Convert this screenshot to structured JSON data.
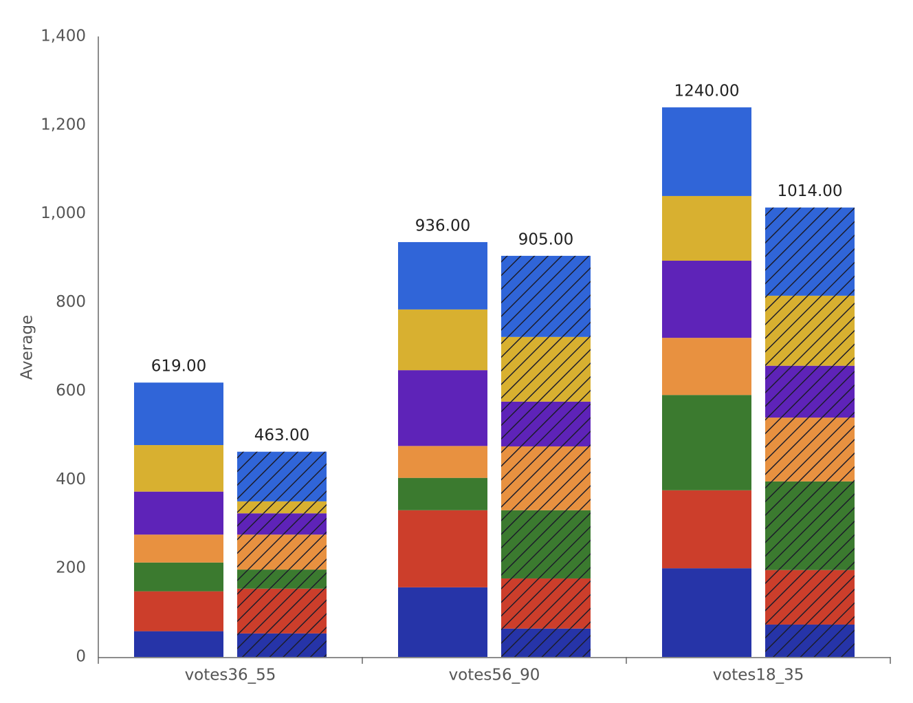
{
  "chart_data": {
    "type": "bar",
    "stacked": true,
    "y_label": "Average",
    "categories": [
      "votes36_55",
      "votes56_90",
      "votes18_35"
    ],
    "ylim": [
      0,
      1400
    ],
    "yticks": [
      0,
      200,
      400,
      600,
      800,
      {
        "value": 1000,
        "label": "1,000"
      },
      {
        "value": 1200,
        "label": "1,200"
      },
      {
        "value": 1400,
        "label": "1,400"
      }
    ],
    "grid": false,
    "stacks": [
      {
        "pattern": "solid",
        "totals": [
          619,
          936,
          1240
        ],
        "total_labels": [
          "619.00",
          "936.00",
          "1240.00"
        ],
        "series": [
          {
            "color": "#2634a8",
            "values": [
              58,
              157,
              200
            ]
          },
          {
            "color": "#cc3e2b",
            "values": [
              90,
              174,
              176
            ]
          },
          {
            "color": "#3b7a2f",
            "values": [
              65,
              73,
              215
            ]
          },
          {
            "color": "#e89140",
            "values": [
              63,
              72,
              129
            ]
          },
          {
            "color": "#5e23b8",
            "values": [
              97,
              171,
              174
            ]
          },
          {
            "color": "#d8b030",
            "values": [
              105,
              137,
              146
            ]
          },
          {
            "color": "#3065d8",
            "values": [
              141,
              152,
              200
            ]
          }
        ]
      },
      {
        "pattern": "hatched",
        "totals": [
          463,
          905,
          1014
        ],
        "total_labels": [
          "463.00",
          "905.00",
          "1014.00"
        ],
        "series": [
          {
            "color": "#2634a8",
            "values": [
              53,
              64,
              73
            ]
          },
          {
            "color": "#cc3e2b",
            "values": [
              101,
              113,
              123
            ]
          },
          {
            "color": "#3b7a2f",
            "values": [
              43,
              154,
              200
            ]
          },
          {
            "color": "#e89140",
            "values": [
              79,
              144,
              144
            ]
          },
          {
            "color": "#5e23b8",
            "values": [
              48,
              101,
              117
            ]
          },
          {
            "color": "#d8b030",
            "values": [
              27,
              146,
              158
            ]
          },
          {
            "color": "#3065d8",
            "values": [
              112,
              183,
              199
            ]
          }
        ]
      }
    ]
  }
}
